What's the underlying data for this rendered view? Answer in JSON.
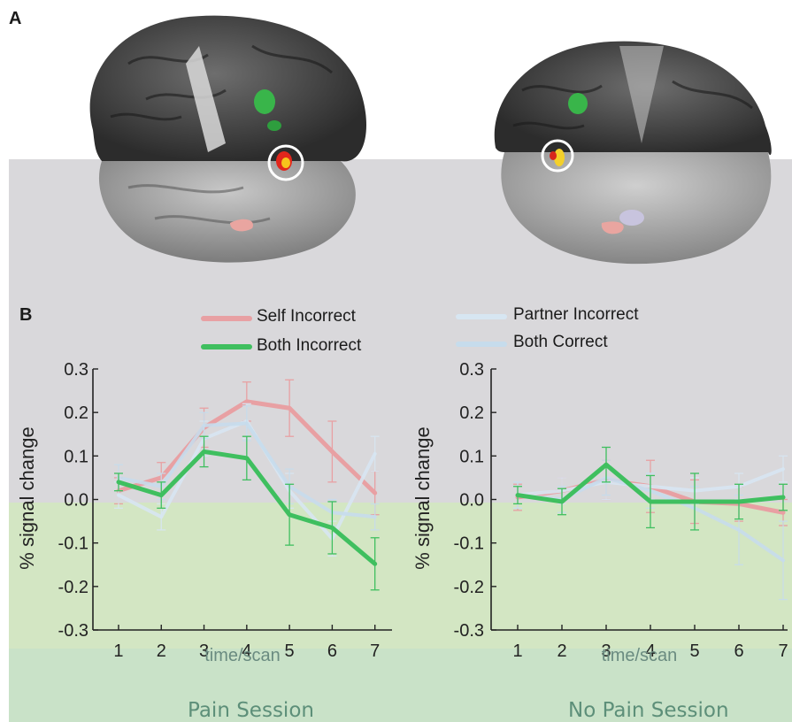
{
  "panel_labels": {
    "a": "A",
    "b": "B"
  },
  "legend": {
    "self_incorrect": "Self Incorrect",
    "both_incorrect": "Both Incorrect",
    "partner_incorrect": "Partner Incorrect",
    "both_correct": "Both Correct"
  },
  "colors": {
    "self_incorrect": "#e8a0a3",
    "both_incorrect": "#3fbf5f",
    "partner_incorrect": "#d7e6f2",
    "both_correct": "#c6dcec"
  },
  "chart_data": [
    {
      "type": "line",
      "title": "Pain Session",
      "xlabel": "time/scan",
      "ylabel": "% signal change",
      "x": [
        1,
        2,
        3,
        4,
        5,
        6,
        7
      ],
      "xlim": [
        0.4,
        7.4
      ],
      "ylim": [
        -0.3,
        0.3
      ],
      "yticks": [
        "0.3",
        "0.2",
        "0.1",
        "0.0",
        "-0.1",
        "-0.2",
        "-0.3"
      ],
      "xticks": [
        "1",
        "2",
        "3",
        "4",
        "5",
        "6",
        "7"
      ],
      "series": [
        {
          "name": "Self Incorrect",
          "color": "#e8a0a3",
          "values": [
            0.02,
            0.05,
            0.165,
            0.225,
            0.21,
            0.11,
            0.015
          ],
          "err": [
            0.03,
            0.035,
            0.045,
            0.045,
            0.065,
            0.07,
            0.05
          ]
        },
        {
          "name": "Partner Incorrect",
          "color": "#d7e6f2",
          "values": [
            0.01,
            -0.04,
            0.14,
            0.18,
            0.02,
            -0.09,
            0.105
          ],
          "err": [
            0.03,
            0.03,
            0.04,
            0.04,
            0.04,
            0.04,
            0.04
          ]
        },
        {
          "name": "Both Correct",
          "color": "#c6dcec",
          "values": [
            0.05,
            0.03,
            0.17,
            0.175,
            0.03,
            -0.03,
            -0.04
          ],
          "err": [
            0.03,
            0.03,
            0.03,
            0.04,
            0.04,
            0.03,
            0.03
          ]
        },
        {
          "name": "Both Incorrect",
          "color": "#3fbf5f",
          "values": [
            0.04,
            0.01,
            0.11,
            0.095,
            -0.035,
            -0.065,
            -0.148
          ],
          "err": [
            0.02,
            0.03,
            0.035,
            0.05,
            0.07,
            0.06,
            0.06
          ]
        }
      ]
    },
    {
      "type": "line",
      "title": "No Pain Session",
      "xlabel": "time/scan",
      "ylabel": "% signal change",
      "x": [
        1,
        2,
        3,
        4,
        5,
        6,
        7
      ],
      "xlim": [
        0.4,
        7.1
      ],
      "ylim": [
        -0.3,
        0.3
      ],
      "yticks": [
        "0.3",
        "0.2",
        "0.1",
        "0.0",
        "-0.1",
        "-0.2",
        "-0.3"
      ],
      "xticks": [
        "1",
        "2",
        "3",
        "4",
        "5",
        "6",
        "7"
      ],
      "series": [
        {
          "name": "Self Incorrect",
          "color": "#e8a0a3",
          "values": [
            0.005,
            0.02,
            0.045,
            0.03,
            -0.005,
            -0.01,
            -0.03
          ],
          "err": [
            0.03,
            0.03,
            0.045,
            0.06,
            0.05,
            0.04,
            0.03
          ]
        },
        {
          "name": "Partner Incorrect",
          "color": "#d7e6f2",
          "values": [
            0.01,
            0.02,
            0.04,
            0.03,
            0.02,
            0.03,
            0.07
          ],
          "err": [
            0.03,
            0.03,
            0.04,
            0.03,
            0.03,
            0.03,
            0.03
          ]
        },
        {
          "name": "Both Correct",
          "color": "#c6dcec",
          "values": [
            0.01,
            0.0,
            0.05,
            0.02,
            -0.02,
            -0.07,
            -0.14
          ],
          "err": [
            0.03,
            0.03,
            0.04,
            0.04,
            0.05,
            0.08,
            0.09
          ]
        },
        {
          "name": "Both Incorrect",
          "color": "#3fbf5f",
          "values": [
            0.01,
            -0.005,
            0.08,
            -0.005,
            -0.005,
            -0.005,
            0.005
          ],
          "err": [
            0.02,
            0.03,
            0.04,
            0.06,
            0.065,
            0.04,
            0.03
          ]
        }
      ]
    }
  ]
}
